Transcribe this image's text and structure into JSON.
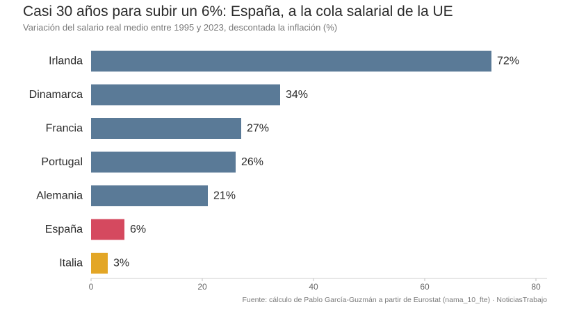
{
  "chart_data": {
    "type": "bar",
    "orientation": "horizontal",
    "title": "Casi 30 años para subir un 6%: España, a la cola salarial de la UE",
    "subtitle": "Variación del salario real medio entre 1995 y 2023, descontada la inflación (%)",
    "categories": [
      "Irlanda",
      "Dinamarca",
      "Francia",
      "Portugal",
      "Alemania",
      "España",
      "Italia"
    ],
    "values": [
      72,
      34,
      27,
      26,
      21,
      6,
      3
    ],
    "value_labels": [
      "72%",
      "34%",
      "27%",
      "26%",
      "21%",
      "6%",
      "3%"
    ],
    "colors": [
      "#5a7a97",
      "#5a7a97",
      "#5a7a97",
      "#5a7a97",
      "#5a7a97",
      "#d5495f",
      "#e3a626"
    ],
    "xlim": [
      0,
      80
    ],
    "xticks": [
      0,
      20,
      40,
      60,
      80
    ],
    "xlabel": "",
    "ylabel": "",
    "grid": false,
    "source": "Fuente: cálculo de Pablo García-Guzmán a partir de Eurostat (nama_10_fte) · NoticiasTrabajo"
  }
}
